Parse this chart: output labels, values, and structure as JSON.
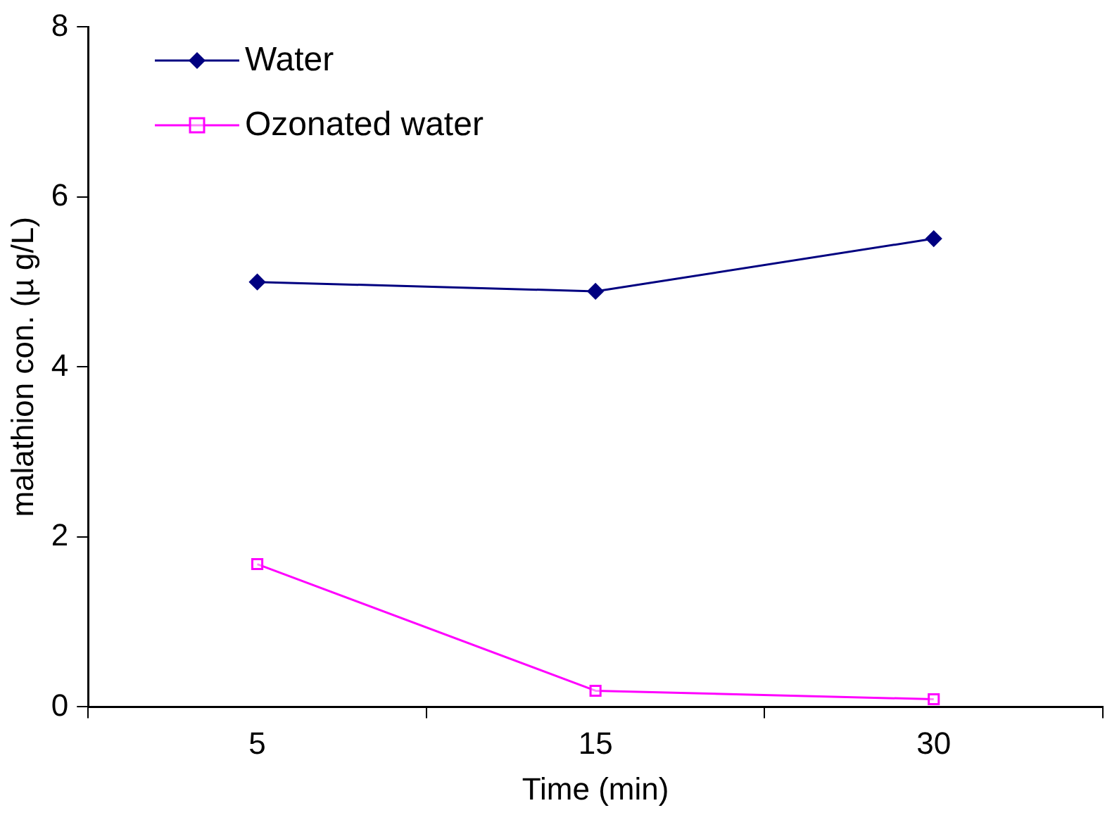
{
  "chart_data": {
    "type": "line",
    "xlabel": "Time (min)",
    "ylabel": "malathion con. (µ g/L)",
    "categories": [
      "5",
      "15",
      "30"
    ],
    "series": [
      {
        "name": "Water",
        "color": "#000080",
        "marker": "diamond",
        "values": [
          5.0,
          4.89,
          5.51
        ]
      },
      {
        "name": "Ozonated water",
        "color": "#ff00ff",
        "marker": "square",
        "values": [
          1.68,
          0.19,
          0.09
        ]
      }
    ],
    "ylim": [
      0,
      8
    ],
    "yticks": [
      0,
      2,
      4,
      6,
      8
    ],
    "grid": false,
    "legend": "top left",
    "line_style": "solid"
  }
}
